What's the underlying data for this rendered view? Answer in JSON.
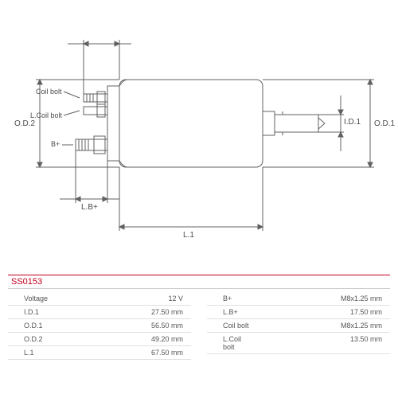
{
  "partNumber": "SS0153",
  "diagram": {
    "line_color": "#606060",
    "line_width": 1,
    "labels": {
      "coilBolt": "Coil bolt",
      "lCoilBolt": "L.Coil bolt",
      "bPlus": "B+",
      "od2": "O.D.2",
      "od1": "O.D.1",
      "id1": "I.D.1",
      "lbPlus": "L.B+",
      "l1": "L.1"
    }
  },
  "specs": {
    "left": [
      {
        "key": "Voltage",
        "val": "12 V"
      },
      {
        "key": "I.D.1",
        "val": "27.50 mm"
      },
      {
        "key": "O.D.1",
        "val": "56.50 mm"
      },
      {
        "key": "O.D.2",
        "val": "49.20 mm"
      },
      {
        "key": "L.1",
        "val": "67.50 mm"
      }
    ],
    "right": [
      {
        "key": "B+",
        "val": "M8x1.25 mm"
      },
      {
        "key": "L.B+",
        "val": "17.50 mm"
      },
      {
        "key": "Coil bolt",
        "val": "M8x1.25 mm"
      },
      {
        "key": "L.Coil bolt",
        "val": "13.50 mm"
      }
    ]
  },
  "colors": {
    "accent": "#c00020",
    "border": "#cccccc",
    "text": "#555555"
  }
}
